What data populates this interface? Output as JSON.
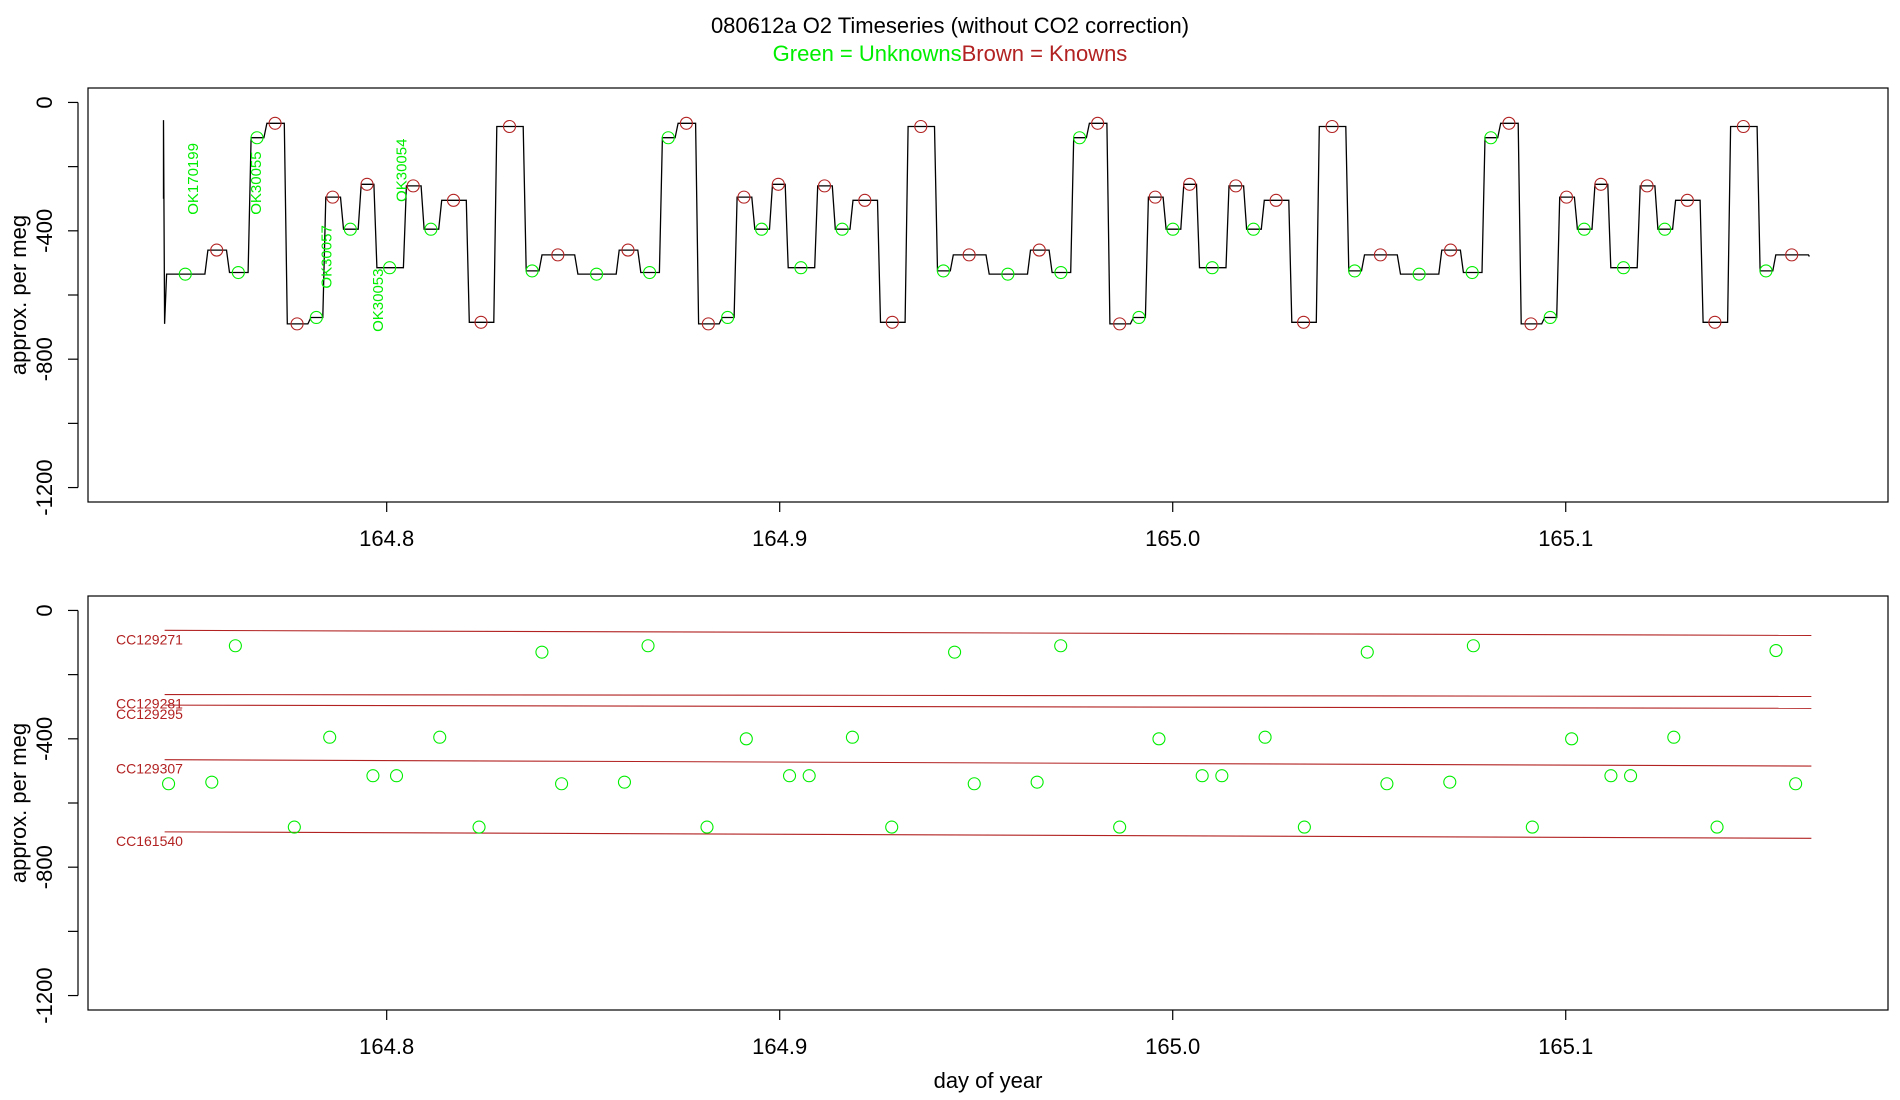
{
  "title": {
    "line1": "080612a   O2 Timeseries (without CO2 correction)",
    "unknowns_label": "Green = Unknowns",
    "knowns_label": "Brown = Knowns"
  },
  "colors": {
    "unknown": "#00ee00",
    "known": "#b22222",
    "trace": "#000000",
    "axis": "#000000"
  },
  "chart_data": [
    {
      "type": "line",
      "ylabel": "approx. per meg",
      "xlabel": "",
      "xlim": [
        164.724,
        165.182
      ],
      "ylim": [
        -1245,
        45
      ],
      "y_ticks": [
        0,
        -400,
        -800,
        -1200
      ],
      "x_ticks": [
        164.8,
        164.9,
        165.0,
        165.1
      ],
      "x_tick_labels": [
        "164.8",
        "164.9",
        "165.0",
        "165.1"
      ],
      "cycle": {
        "start": 164.7435,
        "period": 0.10465,
        "count": 4,
        "segments": [
          [
            0.0,
            0.0105,
            -535
          ],
          [
            0.0105,
            0.016,
            -460
          ],
          [
            0.016,
            0.0215,
            -530
          ],
          [
            0.0215,
            0.0255,
            -110
          ],
          [
            0.0255,
            0.0307,
            -65
          ],
          [
            0.0307,
            0.0367,
            -690
          ],
          [
            0.0367,
            0.0405,
            -670
          ],
          [
            0.0405,
            0.045,
            -295
          ],
          [
            0.045,
            0.0495,
            -395
          ],
          [
            0.0495,
            0.0535,
            -255
          ],
          [
            0.0535,
            0.061,
            -515
          ],
          [
            0.061,
            0.0655,
            -260
          ],
          [
            0.0655,
            0.07,
            -395
          ],
          [
            0.07,
            0.077,
            -305
          ],
          [
            0.077,
            0.084,
            -685
          ],
          [
            0.084,
            0.0915,
            -75
          ],
          [
            0.0915,
            0.0955,
            -525
          ],
          [
            0.0955,
            0.1046,
            -475
          ]
        ]
      },
      "end_x": 165.162,
      "end_y": -480,
      "initial_spike": {
        "x": 164.7432,
        "y_top": -55,
        "y_bottom": -300
      },
      "unknown_labels": [
        {
          "text": "OK170199",
          "x": 164.752,
          "y": -350
        },
        {
          "text": "OK30055",
          "x": 164.768,
          "y": -350
        },
        {
          "text": "OK30057",
          "x": 164.786,
          "y": -580
        },
        {
          "text": "OK30053",
          "x": 164.799,
          "y": -715
        },
        {
          "text": "OK30054",
          "x": 164.805,
          "y": -310
        }
      ]
    },
    {
      "type": "scatter",
      "ylabel": "approx. per meg",
      "xlabel": "day of year",
      "xlim": [
        164.724,
        165.182
      ],
      "ylim": [
        -1245,
        45
      ],
      "y_ticks": [
        0,
        -400,
        -800,
        -1200
      ],
      "x_ticks": [
        164.8,
        164.9,
        165.0,
        165.1
      ],
      "x_tick_labels": [
        "164.8",
        "164.9",
        "165.0",
        "165.1"
      ],
      "knowns": [
        {
          "name": "CC129271",
          "y_start": -62,
          "y_end": -78
        },
        {
          "name": "CC129281",
          "y_start": -262,
          "y_end": -268
        },
        {
          "name": "CC129295",
          "y_start": -295,
          "y_end": -305
        },
        {
          "name": "CC129307",
          "y_start": -465,
          "y_end": -485
        },
        {
          "name": "CC161540",
          "y_start": -690,
          "y_end": -710
        }
      ],
      "known_x_range": [
        164.7435,
        165.1625
      ],
      "unknowns": [
        [
          164.7445,
          -540
        ],
        [
          164.7555,
          -535
        ],
        [
          164.7615,
          -110
        ],
        [
          164.7765,
          -675
        ],
        [
          164.7855,
          -395
        ],
        [
          164.7965,
          -515
        ],
        [
          164.8025,
          -515
        ],
        [
          164.8135,
          -395
        ],
        [
          164.8235,
          -675
        ],
        [
          164.8395,
          -130
        ],
        [
          164.8445,
          -540
        ],
        [
          164.8605,
          -535
        ],
        [
          164.8665,
          -110
        ],
        [
          164.8815,
          -675
        ],
        [
          164.8915,
          -400
        ],
        [
          164.9025,
          -515
        ],
        [
          164.9075,
          -515
        ],
        [
          164.9185,
          -395
        ],
        [
          164.9285,
          -675
        ],
        [
          164.9445,
          -130
        ],
        [
          164.9495,
          -540
        ],
        [
          164.9655,
          -535
        ],
        [
          164.9715,
          -110
        ],
        [
          164.9865,
          -675
        ],
        [
          164.9965,
          -400
        ],
        [
          165.0075,
          -515
        ],
        [
          165.0125,
          -515
        ],
        [
          165.0235,
          -395
        ],
        [
          165.0335,
          -675
        ],
        [
          165.0495,
          -130
        ],
        [
          165.0545,
          -540
        ],
        [
          165.0705,
          -535
        ],
        [
          165.0765,
          -110
        ],
        [
          165.0915,
          -675
        ],
        [
          165.1015,
          -400
        ],
        [
          165.1115,
          -515
        ],
        [
          165.1165,
          -515
        ],
        [
          165.1275,
          -395
        ],
        [
          165.1385,
          -675
        ],
        [
          165.1535,
          -125
        ],
        [
          165.1585,
          -540
        ]
      ]
    }
  ]
}
